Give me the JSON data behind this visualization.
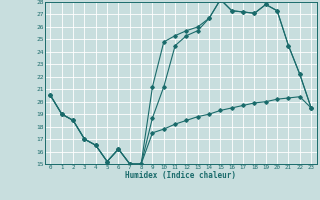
{
  "title": "",
  "xlabel": "Humidex (Indice chaleur)",
  "xlim": [
    -0.5,
    23.5
  ],
  "ylim": [
    15,
    28
  ],
  "xticks": [
    0,
    1,
    2,
    3,
    4,
    5,
    6,
    7,
    8,
    9,
    10,
    11,
    12,
    13,
    14,
    15,
    16,
    17,
    18,
    19,
    20,
    21,
    22,
    23
  ],
  "yticks": [
    15,
    16,
    17,
    18,
    19,
    20,
    21,
    22,
    23,
    24,
    25,
    26,
    27,
    28
  ],
  "bg_color": "#c8dede",
  "grid_color": "#b0cccc",
  "line_color": "#1a6b6b",
  "line1_x": [
    0,
    1,
    2,
    3,
    4,
    5,
    6,
    7,
    8,
    9,
    10,
    11,
    12,
    13,
    14,
    15,
    16,
    17,
    18,
    19,
    20,
    21,
    22,
    23
  ],
  "line1_y": [
    20.5,
    19.0,
    18.5,
    17.0,
    16.5,
    15.2,
    16.2,
    15.0,
    15.0,
    18.7,
    21.2,
    24.5,
    25.3,
    25.7,
    26.7,
    28.2,
    27.3,
    27.2,
    27.1,
    27.8,
    27.3,
    24.5,
    22.2,
    19.5
  ],
  "line2_x": [
    0,
    1,
    2,
    3,
    4,
    5,
    6,
    7,
    8,
    9,
    10,
    11,
    12,
    13,
    14,
    15,
    16,
    17,
    18,
    19,
    20,
    21,
    22,
    23
  ],
  "line2_y": [
    20.5,
    19.0,
    18.5,
    17.0,
    16.5,
    15.2,
    16.2,
    15.0,
    15.0,
    21.2,
    24.8,
    25.3,
    25.7,
    26.0,
    26.7,
    28.2,
    27.3,
    27.2,
    27.1,
    27.8,
    27.3,
    24.5,
    22.2,
    19.5
  ],
  "line3_x": [
    0,
    1,
    2,
    3,
    4,
    5,
    6,
    7,
    8,
    9,
    10,
    11,
    12,
    13,
    14,
    15,
    16,
    17,
    18,
    19,
    20,
    21,
    22,
    23
  ],
  "line3_y": [
    20.5,
    19.0,
    18.5,
    17.0,
    16.5,
    15.2,
    16.2,
    15.0,
    15.0,
    17.5,
    17.8,
    18.2,
    18.5,
    18.8,
    19.0,
    19.3,
    19.5,
    19.7,
    19.9,
    20.0,
    20.2,
    20.3,
    20.4,
    19.5
  ]
}
